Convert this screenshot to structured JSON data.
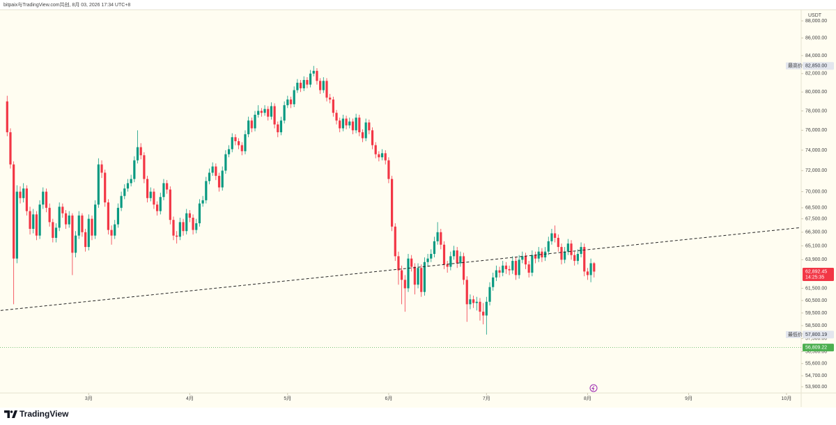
{
  "header": "bitpaix与TradingView.com共创, 8月 03, 2026 17:34 UTC+8",
  "brand": "TradingView",
  "chart_data": {
    "type": "candlestick",
    "currency": "USDT",
    "log_scale": true,
    "up_color": "#089981",
    "down_color": "#f23645",
    "x": [
      0,
      1,
      2,
      3,
      4,
      5,
      6,
      7,
      8,
      9,
      10,
      11,
      12,
      13,
      14,
      15,
      16,
      17,
      18,
      19,
      20,
      21,
      22,
      23,
      24,
      25,
      26,
      27,
      28,
      29,
      30,
      31,
      32,
      33,
      34,
      35,
      36,
      37,
      38,
      39,
      40,
      41,
      42,
      43,
      44,
      45,
      46,
      47,
      48,
      49,
      50,
      51,
      52,
      53,
      54,
      55,
      56,
      57,
      58,
      59,
      60,
      61,
      62,
      63,
      64,
      65,
      66,
      67,
      68,
      69,
      70,
      71,
      72,
      73,
      74,
      75,
      76,
      77,
      78,
      79,
      80,
      81,
      82,
      83,
      84,
      85,
      86,
      87,
      88,
      89,
      90,
      91,
      92,
      93,
      94,
      95,
      96,
      97,
      98,
      99,
      100,
      101,
      102,
      103,
      104,
      105,
      106,
      107,
      108,
      109,
      110,
      111,
      112,
      113,
      114,
      115,
      116,
      117,
      118,
      119,
      120,
      121,
      122,
      123,
      124,
      125,
      126,
      127,
      128,
      129,
      130,
      131,
      132,
      133,
      134,
      135,
      136,
      137,
      138,
      139,
      140,
      141,
      142,
      143,
      144,
      145,
      146,
      147,
      148,
      149,
      150,
      151,
      152,
      153,
      154,
      155,
      156,
      157,
      158,
      159,
      160,
      161,
      162,
      163,
      164,
      165,
      166,
      167,
      168,
      169,
      170,
      171,
      172,
      173,
      174,
      175,
      176,
      177,
      178,
      179,
      180
    ],
    "open": [
      79000,
      75800,
      72600,
      64000,
      70000,
      69400,
      70300,
      68200,
      66600,
      67900,
      66000,
      68800,
      70000,
      68500,
      67200,
      65800,
      66700,
      68600,
      68000,
      67000,
      67800,
      64500,
      66000,
      67800,
      66300,
      65000,
      67500,
      66000,
      68800,
      72600,
      71800,
      69000,
      66500,
      66000,
      67000,
      68500,
      69600,
      70300,
      70800,
      71200,
      73000,
      74300,
      73500,
      71200,
      69400,
      70000,
      68800,
      68200,
      69500,
      70800,
      70200,
      67400,
      66000,
      65900,
      67200,
      66400,
      68000,
      67600,
      66500,
      67100,
      68900,
      69200,
      71000,
      71800,
      72400,
      71500,
      70400,
      72000,
      73600,
      74100,
      75300,
      74900,
      74500,
      73900,
      75600,
      77000,
      76200,
      77600,
      78000,
      77800,
      78200,
      77400,
      78500,
      76600,
      75800,
      77000,
      78600,
      79200,
      78700,
      80200,
      81000,
      80400,
      81300,
      80800,
      82000,
      82300,
      81200,
      80200,
      81200,
      79400,
      79200,
      77800,
      77000,
      76200,
      77200,
      76500,
      76900,
      76000,
      77300,
      75800,
      75200,
      76800,
      76000,
      74500,
      73600,
      73300,
      73700,
      73000,
      71200,
      66800,
      64200,
      63000,
      62200,
      61500,
      64000,
      63300,
      61800,
      63200,
      61200,
      63700,
      64000,
      64400,
      65500,
      66300,
      65200,
      63500,
      63300,
      64200,
      64700,
      63600,
      64200,
      62200,
      60200,
      60600,
      60300,
      60400,
      59600,
      59300,
      60400,
      61600,
      62400,
      63000,
      62800,
      63400,
      63100,
      63000,
      63800,
      62600,
      63900,
      64200,
      63500,
      62800,
      64300,
      64000,
      64600,
      64100,
      64600,
      65500,
      66200,
      65800,
      65000,
      63900,
      64600,
      65300,
      64300,
      63800,
      64400,
      65000,
      62900,
      62600,
      63600
    ],
    "high": [
      79600,
      76200,
      72900,
      70600,
      70500,
      70800,
      70600,
      68600,
      68400,
      68200,
      69200,
      70400,
      70300,
      68900,
      67500,
      67100,
      69000,
      68900,
      68300,
      68200,
      68000,
      66400,
      68200,
      68000,
      66600,
      67900,
      67800,
      69200,
      73200,
      73000,
      72100,
      69300,
      66900,
      67400,
      68900,
      70000,
      70700,
      71200,
      71600,
      73400,
      76000,
      74700,
      73800,
      71500,
      70400,
      70300,
      69100,
      69900,
      71200,
      71100,
      70500,
      67700,
      66400,
      67600,
      67500,
      68400,
      68300,
      67900,
      67500,
      69300,
      69600,
      71400,
      72200,
      72800,
      72700,
      71800,
      72400,
      74000,
      74500,
      75700,
      75600,
      75200,
      74800,
      76000,
      77400,
      77300,
      78000,
      78600,
      78300,
      78600,
      78500,
      78900,
      78800,
      76900,
      77400,
      79000,
      79600,
      79500,
      80600,
      81400,
      81300,
      81700,
      81600,
      82400,
      82850,
      82600,
      81500,
      81600,
      81500,
      79800,
      79500,
      78100,
      77300,
      77600,
      77500,
      77300,
      77200,
      77700,
      77600,
      76100,
      77200,
      77100,
      76300,
      74800,
      73900,
      74100,
      74000,
      73300,
      71500,
      67100,
      64600,
      63400,
      62600,
      64400,
      64300,
      63600,
      63600,
      63500,
      64100,
      64400,
      64800,
      65900,
      67200,
      66600,
      65500,
      63800,
      64600,
      65100,
      65000,
      64600,
      64500,
      62500,
      61000,
      60900,
      60800,
      60700,
      60300,
      60800,
      62000,
      62800,
      63400,
      63300,
      63800,
      63700,
      63400,
      64200,
      64100,
      64300,
      64600,
      64500,
      63800,
      64700,
      64600,
      65000,
      64900,
      65000,
      65900,
      66600,
      66900,
      66100,
      65300,
      65000,
      65700,
      65600,
      64600,
      64800,
      65400,
      65300,
      63200,
      64000,
      63700
    ],
    "low": [
      75400,
      72200,
      60200,
      63600,
      68900,
      69000,
      67800,
      66100,
      66200,
      65600,
      65700,
      68400,
      68100,
      66800,
      65400,
      65400,
      66400,
      67600,
      66600,
      66700,
      62600,
      64100,
      65700,
      65900,
      64600,
      64700,
      65600,
      65700,
      68500,
      71300,
      68600,
      66100,
      65200,
      65700,
      66700,
      68200,
      69300,
      70000,
      70500,
      70900,
      72700,
      73100,
      70800,
      69000,
      69100,
      68400,
      67800,
      67900,
      69200,
      69800,
      67000,
      65600,
      65300,
      65600,
      66000,
      66100,
      67200,
      66100,
      66200,
      66800,
      68600,
      68900,
      70700,
      71500,
      71100,
      70000,
      70100,
      71700,
      73300,
      73800,
      74500,
      74100,
      73500,
      73600,
      75300,
      75800,
      75900,
      77300,
      77400,
      77500,
      77000,
      77100,
      76200,
      75300,
      75500,
      76700,
      78300,
      78300,
      78400,
      79900,
      80000,
      80100,
      80400,
      80500,
      81700,
      80800,
      79800,
      79900,
      79000,
      78800,
      77400,
      76600,
      75800,
      75900,
      76100,
      76200,
      75600,
      75700,
      75400,
      74800,
      74900,
      75600,
      74100,
      73200,
      72900,
      73000,
      72600,
      70800,
      66400,
      63800,
      61800,
      60200,
      59600,
      61200,
      62900,
      61000,
      61500,
      60800,
      60900,
      63300,
      63700,
      64100,
      65200,
      64800,
      63100,
      62800,
      63000,
      63900,
      63200,
      63300,
      61800,
      58800,
      59800,
      59900,
      59700,
      58900,
      58600,
      57800.19,
      60100,
      61300,
      62100,
      62400,
      62500,
      62700,
      62600,
      62700,
      62200,
      62300,
      63600,
      63100,
      62400,
      62500,
      63600,
      63700,
      63700,
      63800,
      64300,
      65200,
      65400,
      64600,
      63500,
      63600,
      64300,
      63900,
      63400,
      63500,
      64100,
      62500,
      62200,
      62000,
      62400
    ],
    "close": [
      75800,
      72600,
      64000,
      70000,
      69400,
      70300,
      68200,
      66600,
      67900,
      66000,
      68800,
      70000,
      68500,
      67200,
      65800,
      66700,
      68600,
      68000,
      67000,
      67800,
      64500,
      66000,
      67800,
      66300,
      65000,
      67500,
      66000,
      68800,
      72600,
      71800,
      69000,
      66500,
      66000,
      67000,
      68500,
      69600,
      70300,
      70800,
      71200,
      73000,
      74300,
      73500,
      71200,
      69400,
      70000,
      68800,
      68200,
      69500,
      70800,
      70200,
      67400,
      66000,
      65900,
      67200,
      66400,
      68000,
      67600,
      66500,
      67100,
      68900,
      69200,
      71000,
      71800,
      72400,
      71500,
      70400,
      72000,
      73600,
      74100,
      75300,
      74900,
      74500,
      73900,
      75600,
      77000,
      76200,
      77600,
      78000,
      77800,
      78200,
      77400,
      78500,
      76600,
      75800,
      77000,
      78600,
      79200,
      78700,
      80200,
      81000,
      80400,
      81300,
      80800,
      82000,
      82300,
      81200,
      80200,
      81200,
      79400,
      79200,
      77800,
      77000,
      76200,
      77200,
      76500,
      76900,
      76000,
      77300,
      75800,
      75200,
      76800,
      76000,
      74500,
      73600,
      73300,
      73700,
      73000,
      71200,
      66800,
      64200,
      63000,
      62200,
      61500,
      64000,
      63300,
      61800,
      63200,
      61200,
      63700,
      64000,
      64400,
      65500,
      66300,
      65200,
      63500,
      63300,
      64200,
      64700,
      63600,
      64200,
      62200,
      60200,
      60600,
      60300,
      60400,
      59600,
      59300,
      60400,
      61600,
      62400,
      63000,
      62800,
      63400,
      63100,
      63000,
      63800,
      62600,
      63900,
      64200,
      63500,
      62800,
      64300,
      64000,
      64600,
      64100,
      64600,
      65500,
      66200,
      65800,
      65000,
      63900,
      64600,
      65300,
      64300,
      63800,
      64400,
      65000,
      62900,
      62600,
      63600,
      62892.45
    ],
    "xlim": [
      -2.2,
      243.5
    ],
    "xticks": [
      {
        "value": 25,
        "label": "3月"
      },
      {
        "value": 56,
        "label": "4月"
      },
      {
        "value": 86,
        "label": "5月"
      },
      {
        "value": 117,
        "label": "6月"
      },
      {
        "value": 147,
        "label": "7月"
      },
      {
        "value": 178,
        "label": "8月"
      },
      {
        "value": 209,
        "label": "9月"
      },
      {
        "value": 239,
        "label": "10月"
      }
    ],
    "ylim": [
      53450,
      89240
    ],
    "yticks": [
      {
        "value": 88000,
        "label": "88,000.00"
      },
      {
        "value": 86000,
        "label": "86,000.00"
      },
      {
        "value": 84000,
        "label": "84,000.00"
      },
      {
        "value": 82000,
        "label": "82,000.00"
      },
      {
        "value": 80000,
        "label": "80,000.00"
      },
      {
        "value": 78000,
        "label": "78,000.00"
      },
      {
        "value": 76000,
        "label": "76,000.00"
      },
      {
        "value": 74000,
        "label": "74,000.00"
      },
      {
        "value": 72000,
        "label": "72,000.00"
      },
      {
        "value": 70000,
        "label": "70,000.00"
      },
      {
        "value": 68500,
        "label": "68,500.00"
      },
      {
        "value": 67500,
        "label": "67,500.00"
      },
      {
        "value": 66300,
        "label": "66,300.00"
      },
      {
        "value": 65100,
        "label": "65,100.00"
      },
      {
        "value": 63900,
        "label": "63,900.00"
      },
      {
        "value": 61500,
        "label": "61,500.00"
      },
      {
        "value": 60500,
        "label": "60,500.00"
      },
      {
        "value": 59500,
        "label": "59,500.00"
      },
      {
        "value": 58500,
        "label": "58,500.00"
      },
      {
        "value": 57500,
        "label": "57,500.00"
      },
      {
        "value": 56500,
        "label": "56,500.00"
      },
      {
        "value": 55600,
        "label": "55,600.00"
      },
      {
        "value": 54700,
        "label": "54,700.00"
      },
      {
        "value": 53900,
        "label": "53,900.00"
      }
    ],
    "high_marker": {
      "label": "最高价",
      "value": 82850,
      "value_label": "82,850.00"
    },
    "low_marker": {
      "label": "最低价",
      "value": 57800.19,
      "value_label": "57,800.19"
    },
    "last_price": {
      "value": 62892.45,
      "value_label": "62,892.45",
      "countdown": "14:25:35"
    },
    "price_line": {
      "value": 56809.22,
      "value_label": "56,809.22",
      "color": "#4caf50"
    },
    "trendline": {
      "x": [
        -2,
        243
      ],
      "y": [
        59700,
        66700
      ]
    }
  }
}
